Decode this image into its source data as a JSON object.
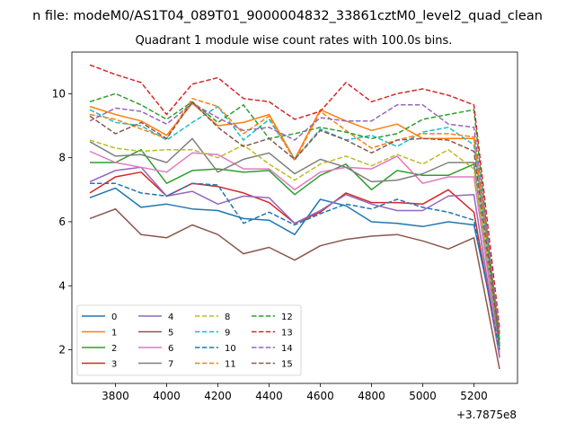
{
  "figure": {
    "suptitle": "n file: modeM0/AS1T04_089T01_9000004832_33861cztM0_level2_quad_clean"
  },
  "chart_data": {
    "type": "line",
    "title": "Quadrant 1 module wise count rates with 100.0s bins.",
    "xlabel": "",
    "ylabel": "",
    "x_offset_label": "+3.7875e8",
    "xlim": [
      3630,
      5370
    ],
    "ylim": [
      0.95,
      11.3
    ],
    "xticks": [
      3800,
      4000,
      4200,
      4400,
      4600,
      4800,
      5000,
      5200
    ],
    "yticks": [
      2,
      4,
      6,
      8,
      10
    ],
    "grid": false,
    "legend": {
      "position": "lower-left",
      "columns": 4
    },
    "x": [
      3700,
      3800,
      3900,
      4000,
      4100,
      4200,
      4300,
      4400,
      4500,
      4600,
      4700,
      4800,
      4900,
      5000,
      5100,
      5200,
      5300
    ],
    "series": [
      {
        "name": "0",
        "color": "#1f77b4",
        "dash": "solid",
        "values": [
          6.75,
          7.05,
          6.45,
          6.55,
          6.4,
          6.35,
          6.1,
          6.05,
          5.6,
          6.7,
          6.5,
          6.0,
          5.95,
          5.85,
          6.0,
          5.9,
          2.2
        ]
      },
      {
        "name": "1",
        "color": "#ff7f0e",
        "dash": "solid",
        "values": [
          9.6,
          9.35,
          9.15,
          8.7,
          9.7,
          9.0,
          9.1,
          9.35,
          7.95,
          9.5,
          9.15,
          8.85,
          9.05,
          8.6,
          8.6,
          8.6,
          2.5
        ]
      },
      {
        "name": "2",
        "color": "#2ca02c",
        "dash": "solid",
        "values": [
          7.85,
          7.85,
          8.25,
          7.2,
          7.6,
          7.65,
          7.55,
          7.6,
          6.85,
          7.45,
          7.8,
          7.0,
          7.6,
          7.45,
          7.45,
          7.8,
          2.0
        ]
      },
      {
        "name": "3",
        "color": "#d62728",
        "dash": "solid",
        "values": [
          6.9,
          7.4,
          7.55,
          6.8,
          7.2,
          7.1,
          6.9,
          6.6,
          5.95,
          6.3,
          6.9,
          6.6,
          6.6,
          6.55,
          7.0,
          6.3,
          1.8
        ]
      },
      {
        "name": "4",
        "color": "#9467bd",
        "dash": "solid",
        "values": [
          7.25,
          7.6,
          7.7,
          6.8,
          6.95,
          6.55,
          6.8,
          6.75,
          5.95,
          6.35,
          6.85,
          6.55,
          6.35,
          6.35,
          6.8,
          6.85,
          1.75
        ]
      },
      {
        "name": "5",
        "color": "#8c564b",
        "dash": "solid",
        "values": [
          6.1,
          6.4,
          5.6,
          5.5,
          5.9,
          5.6,
          5.0,
          5.2,
          4.8,
          5.25,
          5.45,
          5.55,
          5.6,
          5.4,
          5.15,
          5.5,
          1.4
        ]
      },
      {
        "name": "6",
        "color": "#e377c2",
        "dash": "solid",
        "values": [
          8.2,
          7.85,
          7.7,
          7.55,
          8.15,
          8.1,
          7.65,
          7.65,
          7.0,
          7.55,
          7.7,
          7.65,
          8.05,
          7.2,
          7.4,
          7.4,
          1.9
        ]
      },
      {
        "name": "7",
        "color": "#7f7f7f",
        "dash": "solid",
        "values": [
          8.5,
          8.05,
          8.1,
          7.85,
          8.6,
          7.55,
          7.95,
          8.15,
          7.5,
          7.95,
          7.7,
          7.25,
          7.3,
          7.5,
          7.85,
          7.85,
          2.1
        ]
      },
      {
        "name": "8",
        "color": "#bcbd22",
        "dash": "dashed",
        "values": [
          8.55,
          8.3,
          8.2,
          8.25,
          8.25,
          8.0,
          8.4,
          7.8,
          7.3,
          7.8,
          8.05,
          7.75,
          8.1,
          7.8,
          8.25,
          7.65,
          2.3
        ]
      },
      {
        "name": "9",
        "color": "#17becf",
        "dash": "dashed",
        "values": [
          9.5,
          9.1,
          9.0,
          8.55,
          9.1,
          9.6,
          8.55,
          9.2,
          7.95,
          8.9,
          8.55,
          8.7,
          8.35,
          8.8,
          8.95,
          8.4,
          2.35
        ]
      },
      {
        "name": "10",
        "color": "#1f77b4",
        "dash": "dashed",
        "values": [
          7.2,
          7.2,
          6.9,
          6.8,
          7.2,
          7.15,
          5.95,
          6.3,
          5.9,
          6.25,
          6.55,
          6.4,
          6.7,
          6.45,
          6.3,
          6.05,
          2.0
        ]
      },
      {
        "name": "11",
        "color": "#ff7f0e",
        "dash": "dashed",
        "values": [
          9.35,
          9.2,
          8.9,
          8.6,
          9.85,
          9.6,
          8.75,
          9.3,
          7.9,
          9.45,
          8.85,
          8.3,
          8.55,
          8.75,
          8.75,
          8.65,
          2.5
        ]
      },
      {
        "name": "12",
        "color": "#2ca02c",
        "dash": "dashed",
        "values": [
          9.75,
          10.0,
          9.65,
          9.2,
          9.75,
          9.1,
          9.65,
          8.6,
          8.75,
          8.95,
          8.8,
          8.6,
          8.75,
          9.2,
          9.35,
          9.5,
          2.1
        ]
      },
      {
        "name": "13",
        "color": "#d62728",
        "dash": "dashed",
        "values": [
          10.9,
          10.6,
          10.35,
          9.35,
          10.3,
          10.5,
          9.85,
          9.75,
          9.2,
          9.45,
          10.35,
          9.75,
          10.0,
          10.15,
          9.95,
          9.65,
          2.7
        ]
      },
      {
        "name": "14",
        "color": "#9467bd",
        "dash": "dashed",
        "values": [
          9.15,
          9.55,
          9.45,
          9.05,
          9.7,
          9.25,
          8.85,
          8.95,
          8.55,
          9.25,
          9.15,
          9.15,
          9.65,
          9.65,
          9.05,
          8.95,
          2.55
        ]
      },
      {
        "name": "15",
        "color": "#8c564b",
        "dash": "dashed",
        "values": [
          9.3,
          8.75,
          9.1,
          8.6,
          9.75,
          8.95,
          8.35,
          8.6,
          7.95,
          8.85,
          8.55,
          8.15,
          8.55,
          8.6,
          8.55,
          8.2,
          2.3
        ]
      }
    ]
  }
}
